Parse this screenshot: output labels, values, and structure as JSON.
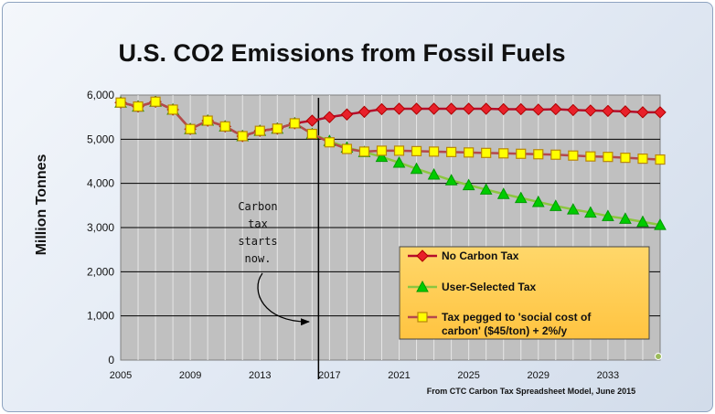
{
  "chart_data": {
    "type": "line",
    "title": "U.S. CO2 Emissions from Fossil Fuels",
    "ylabel": "Million Tonnes",
    "xlabel": "",
    "ylim": [
      0,
      6000
    ],
    "yticks": [
      "0",
      "1,000",
      "2,000",
      "3,000",
      "4,000",
      "5,000",
      "6,000"
    ],
    "yticks_values": [
      0,
      1000,
      2000,
      3000,
      4000,
      5000,
      6000
    ],
    "xticks": [
      "2005",
      "2009",
      "2013",
      "2017",
      "2021",
      "2025",
      "2029",
      "2033"
    ],
    "xticks_values": [
      2005,
      2009,
      2013,
      2017,
      2021,
      2025,
      2029,
      2033
    ],
    "xlim": [
      2005,
      2036
    ],
    "grid": true,
    "legend_position": "lower-right",
    "x": [
      2005,
      2006,
      2007,
      2008,
      2009,
      2010,
      2011,
      2012,
      2013,
      2014,
      2015,
      2016,
      2017,
      2018,
      2019,
      2020,
      2021,
      2022,
      2023,
      2024,
      2025,
      2026,
      2027,
      2028,
      2029,
      2030,
      2031,
      2032,
      2033,
      2034,
      2035,
      2036
    ],
    "series": [
      {
        "name": "No Carbon Tax",
        "color": "#e8202a",
        "marker": "diamond",
        "values": [
          5830,
          5740,
          5850,
          5670,
          5230,
          5420,
          5290,
          5070,
          5190,
          5240,
          5360,
          5420,
          5500,
          5560,
          5620,
          5680,
          5690,
          5690,
          5690,
          5690,
          5690,
          5690,
          5680,
          5680,
          5670,
          5680,
          5660,
          5650,
          5640,
          5630,
          5610,
          5610
        ]
      },
      {
        "name": "User-Selected Tax",
        "color": "#00cc00",
        "marker": "triangle",
        "values": [
          5830,
          5740,
          5850,
          5670,
          5230,
          5420,
          5290,
          5070,
          5190,
          5240,
          5360,
          5120,
          4960,
          4810,
          4710,
          4600,
          4470,
          4330,
          4200,
          4070,
          3960,
          3860,
          3760,
          3670,
          3580,
          3490,
          3410,
          3340,
          3260,
          3200,
          3130,
          3060
        ]
      },
      {
        "name": "Tax pegged to 'social cost of carbon' ($45/ton) + 2%/y",
        "color": "#ffff00",
        "marker": "square",
        "values": [
          5830,
          5740,
          5850,
          5670,
          5230,
          5420,
          5290,
          5070,
          5190,
          5240,
          5360,
          5120,
          4930,
          4780,
          4720,
          4740,
          4740,
          4730,
          4720,
          4710,
          4700,
          4690,
          4680,
          4670,
          4660,
          4650,
          4630,
          4610,
          4600,
          4580,
          4560,
          4540
        ]
      }
    ],
    "annotation": {
      "lines": [
        "Carbon",
        "tax",
        "starts",
        "now."
      ],
      "year": 2016
    },
    "source_note": "From CTC Carbon Tax Spreadsheet Model, June 2015"
  }
}
